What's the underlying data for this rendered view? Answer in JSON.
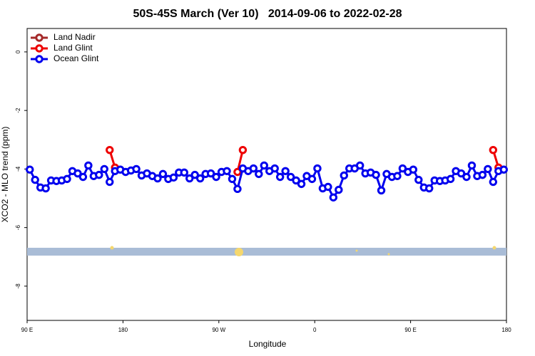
{
  "chart_data": {
    "type": "line",
    "title": "50S-45S March (Ver 10)   2014-09-06 to 2022-02-28",
    "x_label": "Longitude",
    "y_label": "XCO2 - MLO trend (ppm)",
    "xlim": [
      90,
      540
    ],
    "ylim": [
      -9.17,
      0.8
    ],
    "xticks": [
      {
        "value": 90,
        "label": "90 E"
      },
      {
        "value": 180,
        "label": "180"
      },
      {
        "value": 270,
        "label": "90 W"
      },
      {
        "value": 360,
        "label": "0"
      },
      {
        "value": 450,
        "label": "90 E"
      },
      {
        "value": 540,
        "label": "180"
      }
    ],
    "yticks": [
      0,
      -2,
      -4,
      -6,
      -8
    ],
    "legend": "top-left",
    "series": [
      {
        "name": "Land Nadir",
        "color": "#a52a2a",
        "x": [],
        "values": []
      },
      {
        "name": "Land Glint",
        "color": "#ee0000",
        "x": [
          167.5,
          172.5,
          230,
          287.5,
          292.5,
          400,
          527.5,
          532.5
        ],
        "values": [
          -3.35,
          -3.95,
          null,
          -4.1,
          -3.35,
          null,
          -3.35,
          -3.95
        ]
      },
      {
        "name": "Ocean Glint",
        "color": "#0000ee",
        "x": [
          92.5,
          97.5,
          102.5,
          107.5,
          112.5,
          117.5,
          122.5,
          127.5,
          132.5,
          137.5,
          142.5,
          147.5,
          152.5,
          157.5,
          162.5,
          167.5,
          172.5,
          177.5,
          182.5,
          187.5,
          192.5,
          197.5,
          202.5,
          207.5,
          212.5,
          217.5,
          222.5,
          227.5,
          232.5,
          237.5,
          242.5,
          247.5,
          252.5,
          257.5,
          262.5,
          267.5,
          272.5,
          277.5,
          282.5,
          287.5,
          292.5,
          297.5,
          302.5,
          307.5,
          312.5,
          317.5,
          322.5,
          327.5,
          332.5,
          337.5,
          342.5,
          347.5,
          352.5,
          357.5,
          362.5,
          367.5,
          372.5,
          377.5,
          382.5,
          387.5,
          392.5,
          397.5,
          402.5,
          407.5,
          412.5,
          417.5,
          422.5,
          427.5,
          432.5,
          437.5,
          442.5,
          447.5,
          452.5,
          457.5,
          462.5,
          467.5,
          472.5,
          477.5,
          482.5,
          487.5,
          492.5,
          497.5,
          502.5,
          507.5,
          512.5,
          517.5,
          522.5,
          527.5,
          532.5,
          537.5
        ],
        "values": [
          -4.02,
          -4.37,
          -4.63,
          -4.66,
          -4.39,
          -4.41,
          -4.39,
          -4.34,
          -4.07,
          -4.15,
          -4.27,
          -3.88,
          -4.24,
          -4.2,
          -4.0,
          -4.44,
          -4.07,
          -4.02,
          -4.1,
          -4.05,
          -4.0,
          -4.22,
          -4.15,
          -4.24,
          -4.32,
          -4.17,
          -4.34,
          -4.29,
          -4.12,
          -4.12,
          -4.32,
          -4.2,
          -4.32,
          -4.17,
          -4.15,
          -4.27,
          -4.1,
          -4.07,
          -4.34,
          -4.68,
          -3.98,
          -4.07,
          -3.98,
          -4.17,
          -3.88,
          -4.07,
          -3.98,
          -4.27,
          -4.07,
          -4.27,
          -4.39,
          -4.51,
          -4.24,
          -4.34,
          -3.98,
          -4.66,
          -4.61,
          -4.97,
          -4.71,
          -4.22,
          -3.98,
          -3.98,
          -3.88,
          -4.15,
          -4.12,
          -4.2,
          -4.73,
          -4.17,
          -4.27,
          -4.24,
          -3.98,
          -4.1,
          -4.02,
          -4.37,
          -4.63,
          -4.66,
          -4.39,
          -4.41,
          -4.39,
          -4.34,
          -4.07,
          -4.15,
          -4.27,
          -3.88,
          -4.24,
          -4.2,
          -4.0,
          -4.44,
          -4.07,
          -4.02
        ]
      }
    ]
  }
}
